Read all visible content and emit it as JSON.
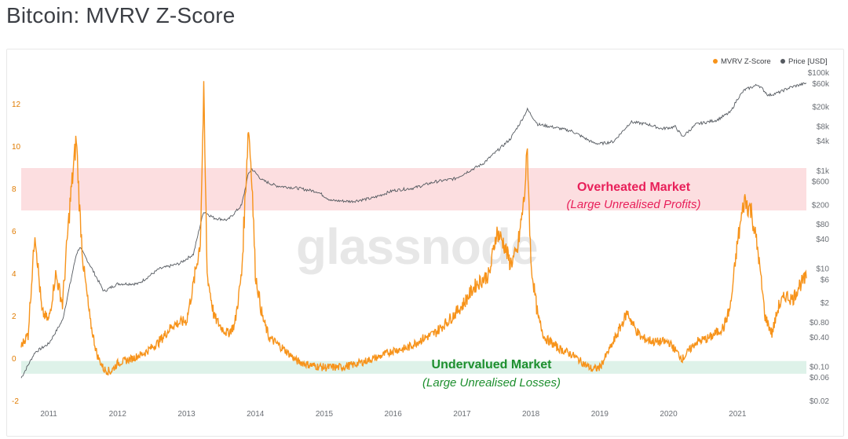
{
  "page": {
    "title": "Bitcoin: MVRV Z-Score"
  },
  "colors": {
    "zscore": "#f7931a",
    "price": "#555a60",
    "overheated_band": "#fbd3d6",
    "undervalued_band": "#d6efe3",
    "red_text": "#e8205a",
    "green_text": "#1d8f2e"
  },
  "chart_data": {
    "type": "line",
    "title": "Bitcoin: MVRV Z-Score",
    "watermark": "glassnode",
    "legend": [
      {
        "name": "MVRV Z-Score",
        "color": "#f7931a"
      },
      {
        "name": "Price [USD]",
        "color": "#555a60"
      }
    ],
    "x_ticks": [
      "2011",
      "2012",
      "2013",
      "2014",
      "2015",
      "2016",
      "2017",
      "2018",
      "2019",
      "2020",
      "2021"
    ],
    "left_axis": {
      "ticks": [
        "12",
        "10",
        "8",
        "6",
        "4",
        "2",
        "0",
        "-2"
      ],
      "values": [
        12,
        10,
        8,
        6,
        4,
        2,
        0,
        -2
      ],
      "ylim": [
        -2.2,
        13.2
      ]
    },
    "right_axis": {
      "scale": "log",
      "ticks": [
        "$100k",
        "$60k",
        "$20k",
        "$8k",
        "$4k",
        "$1k",
        "$600",
        "$200",
        "$80",
        "$40",
        "$10",
        "$6",
        "$2",
        "$0.80",
        "$0.40",
        "$0.10",
        "$0.06",
        "$0.02"
      ],
      "values": [
        100000,
        60000,
        20000,
        8000,
        4000,
        1000,
        600,
        200,
        80,
        40,
        10,
        6,
        2,
        0.8,
        0.4,
        0.1,
        0.06,
        0.02
      ]
    },
    "zones": [
      {
        "title": "Overheated Market",
        "subtitle": "(Large Unrealised Profits)",
        "from": 7.0,
        "to": 9.0
      },
      {
        "title": "Undervalued Market",
        "subtitle": "(Large Unrealised Losses)",
        "from": -0.7,
        "to": -0.1
      }
    ],
    "series": [
      {
        "name": "MVRV Z-Score",
        "x": [
          2010.6,
          2010.7,
          2010.8,
          2010.9,
          2011.0,
          2011.1,
          2011.2,
          2011.3,
          2011.4,
          2011.45,
          2011.5,
          2011.6,
          2011.7,
          2011.8,
          2011.9,
          2012.0,
          2012.2,
          2012.4,
          2012.6,
          2012.8,
          2013.0,
          2013.1,
          2013.2,
          2013.25,
          2013.3,
          2013.4,
          2013.5,
          2013.6,
          2013.7,
          2013.8,
          2013.9,
          2013.95,
          2014.0,
          2014.1,
          2014.2,
          2014.4,
          2014.6,
          2014.8,
          2015.0,
          2015.2,
          2015.4,
          2015.6,
          2015.8,
          2016.0,
          2016.2,
          2016.4,
          2016.6,
          2016.8,
          2017.0,
          2017.2,
          2017.4,
          2017.5,
          2017.6,
          2017.7,
          2017.8,
          2017.9,
          2017.95,
          2018.0,
          2018.1,
          2018.2,
          2018.4,
          2018.6,
          2018.8,
          2018.9,
          2019.0,
          2019.2,
          2019.4,
          2019.5,
          2019.6,
          2019.8,
          2020.0,
          2020.2,
          2020.4,
          2020.6,
          2020.8,
          2020.9,
          2021.0,
          2021.1,
          2021.2,
          2021.3,
          2021.4,
          2021.5,
          2021.6,
          2021.7,
          2021.8,
          2021.9,
          2022.0
        ],
        "y": [
          0.6,
          1.2,
          6.0,
          2.2,
          1.8,
          4.0,
          2.6,
          7.0,
          10.4,
          7.0,
          4.5,
          1.8,
          0.2,
          -0.5,
          -0.6,
          -0.2,
          0.0,
          0.3,
          0.8,
          1.6,
          1.8,
          3.5,
          5.5,
          12.5,
          4.0,
          2.0,
          1.5,
          1.2,
          1.6,
          4.0,
          11.0,
          8.5,
          4.0,
          2.0,
          1.0,
          0.5,
          -0.1,
          -0.3,
          -0.4,
          -0.4,
          -0.3,
          -0.1,
          0.1,
          0.4,
          0.5,
          0.9,
          1.2,
          1.8,
          2.5,
          3.5,
          4.0,
          6.0,
          5.5,
          4.5,
          5.0,
          7.5,
          9.8,
          4.5,
          2.0,
          1.0,
          0.5,
          0.2,
          -0.3,
          -0.5,
          -0.4,
          0.8,
          2.2,
          1.5,
          1.0,
          0.8,
          0.8,
          0.0,
          0.8,
          1.0,
          1.5,
          2.5,
          5.5,
          7.5,
          7.0,
          5.0,
          2.0,
          1.2,
          2.5,
          3.0,
          2.8,
          3.5,
          3.8
        ]
      },
      {
        "name": "Price [USD]",
        "x": [
          2010.6,
          2010.8,
          2011.0,
          2011.2,
          2011.4,
          2011.45,
          2011.6,
          2011.8,
          2012.0,
          2012.3,
          2012.6,
          2012.9,
          2013.1,
          2013.2,
          2013.25,
          2013.4,
          2013.6,
          2013.8,
          2013.9,
          2013.95,
          2014.1,
          2014.3,
          2014.6,
          2014.9,
          2015.1,
          2015.4,
          2015.7,
          2016.0,
          2016.3,
          2016.6,
          2016.9,
          2017.1,
          2017.3,
          2017.5,
          2017.7,
          2017.85,
          2017.95,
          2018.1,
          2018.3,
          2018.6,
          2018.9,
          2019.0,
          2019.2,
          2019.45,
          2019.7,
          2019.9,
          2020.1,
          2020.2,
          2020.4,
          2020.7,
          2020.9,
          2021.0,
          2021.1,
          2021.3,
          2021.45,
          2021.6,
          2021.75,
          2021.85,
          2022.0
        ],
        "y": [
          0.06,
          0.2,
          0.3,
          0.9,
          20,
          28,
          12,
          3.5,
          5,
          5,
          10,
          13,
          20,
          80,
          150,
          110,
          100,
          200,
          900,
          1100,
          650,
          500,
          450,
          380,
          250,
          240,
          280,
          400,
          450,
          600,
          700,
          1000,
          1400,
          2500,
          4500,
          10000,
          18000,
          9000,
          8000,
          6500,
          3800,
          3600,
          4000,
          10000,
          9000,
          7300,
          8000,
          5000,
          9000,
          11000,
          16000,
          30000,
          45000,
          58000,
          35000,
          40000,
          50000,
          55000,
          62000
        ]
      }
    ]
  }
}
